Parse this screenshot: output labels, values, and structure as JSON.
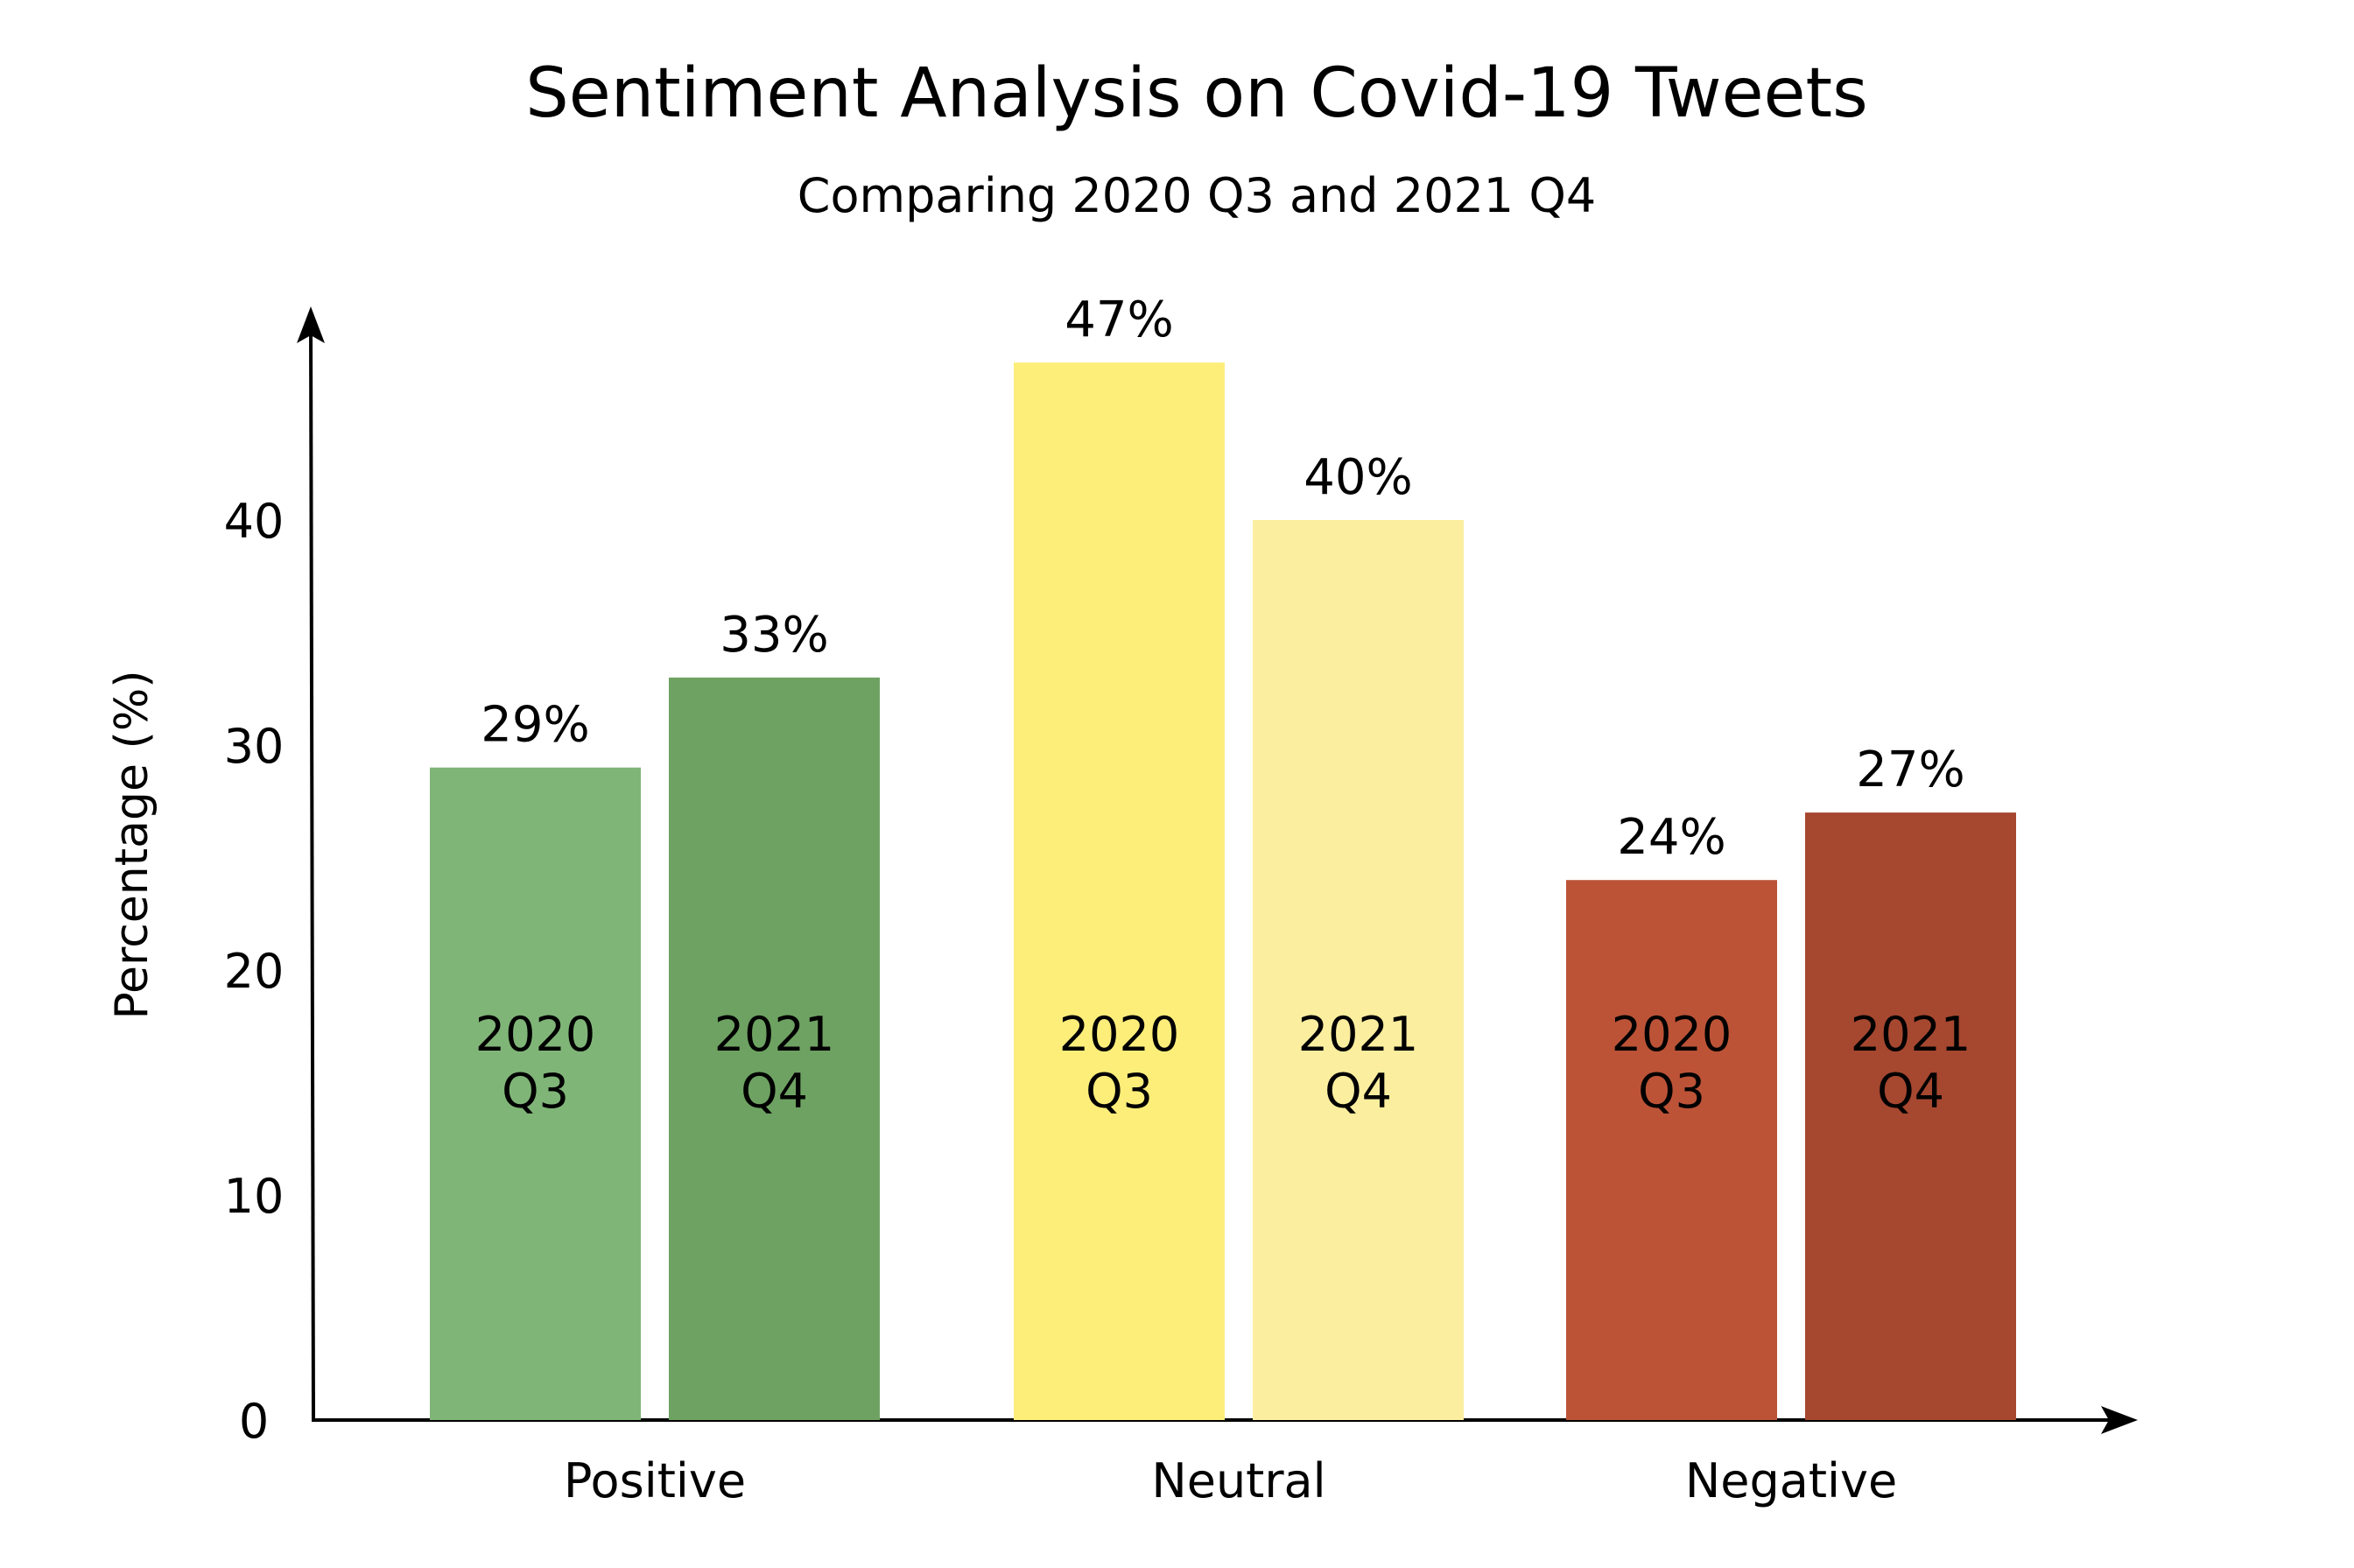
{
  "chart_data": {
    "type": "bar",
    "title": "Sentiment Analysis on Covid-19 Tweets",
    "subtitle": "Comparing 2020 Q3 and 2021 Q4",
    "xlabel": "",
    "ylabel": "Percentage (%)",
    "ylim": [
      0,
      48
    ],
    "yticks": [
      "0",
      "10",
      "20",
      "30",
      "40"
    ],
    "grid": false,
    "legend": "none",
    "categories": [
      "Positive",
      "Neutral",
      "Negative"
    ],
    "series": [
      {
        "period_line1": "2020",
        "period_line2": "Q3",
        "values": [
          29,
          47,
          24
        ],
        "value_labels": [
          "29%",
          "47%",
          "24%"
        ],
        "colors": [
          "#80b578",
          "#fdee7a",
          "#bc5337"
        ]
      },
      {
        "period_line1": "2021",
        "period_line2": "Q4",
        "values": [
          33,
          40,
          27
        ],
        "value_labels": [
          "33%",
          "40%",
          "27%"
        ],
        "colors": [
          "#6ea262",
          "#fbee9f",
          "#a64730"
        ]
      }
    ]
  }
}
